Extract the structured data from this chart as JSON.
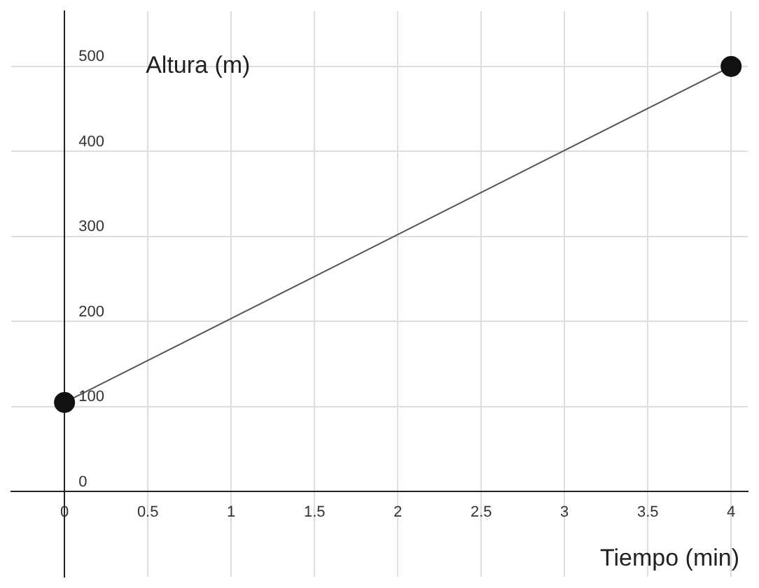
{
  "chart_data": {
    "type": "line",
    "xlabel": "Tiempo (min)",
    "ylabel": "Altura (m)",
    "x": [
      0,
      4
    ],
    "series": [
      {
        "color": "#111111",
        "values": [
          105,
          500
        ]
      }
    ],
    "xlim": [
      -0.32,
      4.1
    ],
    "ylim": [
      -100,
      565
    ],
    "xticks": [
      0,
      0.5,
      1,
      1.5,
      2,
      2.5,
      3,
      3.5,
      4
    ],
    "yticks": [
      0,
      100,
      200,
      300,
      400,
      500
    ],
    "grid": true,
    "legend": false,
    "marker": "circle",
    "line_style": "solid"
  }
}
